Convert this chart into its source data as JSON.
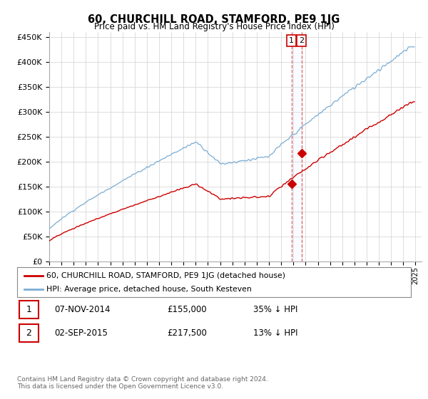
{
  "title": "60, CHURCHILL ROAD, STAMFORD, PE9 1JG",
  "subtitle": "Price paid vs. HM Land Registry's House Price Index (HPI)",
  "legend_line1": "60, CHURCHILL ROAD, STAMFORD, PE9 1JG (detached house)",
  "legend_line2": "HPI: Average price, detached house, South Kesteven",
  "transaction1_date": "07-NOV-2014",
  "transaction1_price": "£155,000",
  "transaction1_hpi": "35% ↓ HPI",
  "transaction2_date": "02-SEP-2015",
  "transaction2_price": "£217,500",
  "transaction2_hpi": "13% ↓ HPI",
  "footer": "Contains HM Land Registry data © Crown copyright and database right 2024.\nThis data is licensed under the Open Government Licence v3.0.",
  "red_color": "#cc0000",
  "blue_color": "#7aadd4",
  "dashed_line_color": "#dd4444",
  "shade_color": "#ddeeff",
  "background_color": "#ffffff",
  "ylim": [
    0,
    460000
  ],
  "yticks": [
    0,
    50000,
    100000,
    150000,
    200000,
    250000,
    300000,
    350000,
    400000,
    450000
  ],
  "t1_x": 2014.84,
  "t1_y": 155000,
  "t2_x": 2015.67,
  "t2_y": 217500,
  "xmin": 1995,
  "xmax": 2025.5
}
